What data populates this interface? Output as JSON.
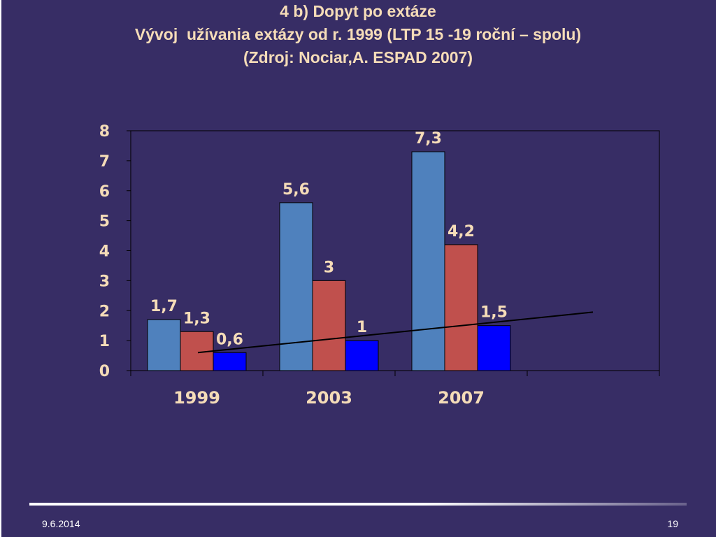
{
  "slide": {
    "title_line1": "4 b) Dopyt po extáze",
    "title_line2": "Vývoj  užívania extázy od r. 1999 (LTP 15 -19 roční – spolu)",
    "title_line3": "(Zdroj: Nociar,A. ESPAD 2007)",
    "footer_date": "9.6.2014",
    "page_number": "19"
  },
  "colors": {
    "background": "#372d65",
    "title_text": "#f5dcb8",
    "label_text": "#f5dcb8",
    "axis": "#000000",
    "trendline": "#000000"
  },
  "chart_data": {
    "type": "bar",
    "categories": [
      "1999",
      "2003",
      "2007"
    ],
    "series": [
      {
        "values": [
          1.7,
          5.6,
          7.3
        ],
        "color": "#4f81bd",
        "labels": [
          "1,7",
          "5,6",
          "7,3"
        ]
      },
      {
        "values": [
          1.3,
          3,
          4.2
        ],
        "color": "#c0504d",
        "labels": [
          "1,3",
          "3",
          "4,2"
        ]
      },
      {
        "values": [
          0.6,
          1,
          1.5
        ],
        "color": "#0000ff",
        "labels": [
          "0,6",
          "1",
          "1,5"
        ]
      }
    ],
    "yticks": [
      "0",
      "1",
      "2",
      "3",
      "4",
      "5",
      "6",
      "7",
      "8"
    ],
    "ylim": [
      0,
      8
    ],
    "grid": false,
    "legend": "none",
    "trendline": {
      "type": "linear",
      "from": {
        "category_index": 0,
        "value": 0.6
      },
      "to": {
        "category_index": 3,
        "value": 1.95
      }
    }
  }
}
